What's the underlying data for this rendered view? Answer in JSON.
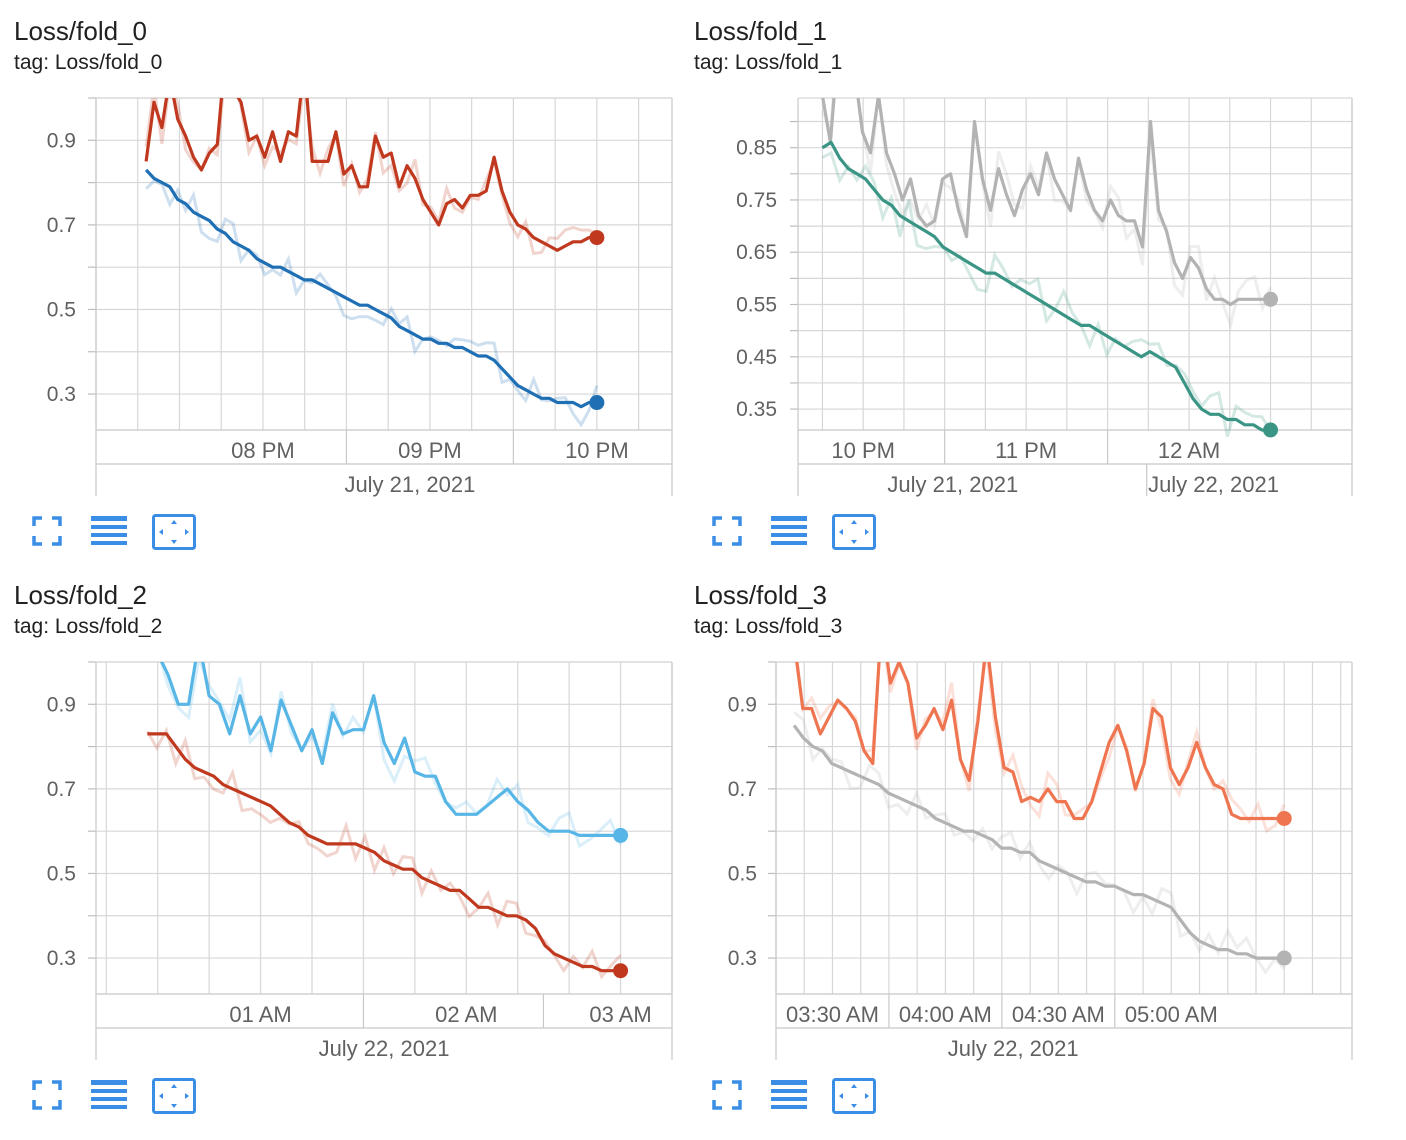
{
  "colors": {
    "blue": "#1f6fb4",
    "red": "#c0391f",
    "teal": "#3a9585",
    "gray": "#b3b3b3",
    "lightblue": "#58b6e6",
    "orange": "#ee7550",
    "icon": "#3a8ee6"
  },
  "icons": [
    "fullscreen-icon",
    "toggle-log-icon",
    "fit-domain-icon"
  ],
  "chart_data": [
    {
      "type": "line",
      "title": "Loss/fold_0",
      "tag": "tag: Loss/fold_0",
      "y_ticks": [
        "0.9",
        "0.7",
        "0.5",
        "0.3"
      ],
      "y_tick_values": [
        0.9,
        0.7,
        0.5,
        0.3
      ],
      "ylim": [
        0.215,
        1.0
      ],
      "x_ticks": [
        "08 PM",
        "09 PM",
        "10 PM"
      ],
      "x_tick_values": [
        20.0,
        21.0,
        22.0
      ],
      "xlim": [
        19.0,
        22.45
      ],
      "date_labels": [
        "July 21, 2021"
      ],
      "date_values": [
        20.88
      ],
      "date_sep": [],
      "x_start": 19.3,
      "x_end": 22.0,
      "grid": true,
      "series": [
        {
          "color_key": "red",
          "values": [
            0.85,
            0.99,
            0.93,
            1.05,
            0.95,
            0.91,
            0.86,
            0.83,
            0.87,
            0.89,
            1.1,
            1.02,
            0.99,
            0.9,
            0.91,
            0.86,
            0.92,
            0.85,
            0.92,
            0.91,
            1.08,
            0.85,
            0.85,
            0.85,
            0.92,
            0.82,
            0.84,
            0.79,
            0.79,
            0.91,
            0.86,
            0.87,
            0.79,
            0.84,
            0.81,
            0.76,
            0.73,
            0.7,
            0.75,
            0.76,
            0.74,
            0.77,
            0.77,
            0.78,
            0.86,
            0.78,
            0.73,
            0.7,
            0.69,
            0.67,
            0.66,
            0.65,
            0.64,
            0.65,
            0.66,
            0.66,
            0.67,
            0.67
          ]
        },
        {
          "color_key": "blue",
          "values": [
            0.83,
            0.81,
            0.8,
            0.79,
            0.76,
            0.75,
            0.73,
            0.72,
            0.71,
            0.69,
            0.68,
            0.66,
            0.65,
            0.64,
            0.62,
            0.61,
            0.6,
            0.6,
            0.59,
            0.58,
            0.57,
            0.57,
            0.56,
            0.55,
            0.54,
            0.53,
            0.52,
            0.51,
            0.51,
            0.5,
            0.49,
            0.48,
            0.46,
            0.45,
            0.44,
            0.43,
            0.43,
            0.42,
            0.42,
            0.41,
            0.41,
            0.4,
            0.39,
            0.39,
            0.38,
            0.36,
            0.34,
            0.32,
            0.31,
            0.3,
            0.29,
            0.29,
            0.28,
            0.28,
            0.28,
            0.27,
            0.28,
            0.28
          ]
        }
      ]
    },
    {
      "type": "line",
      "title": "Loss/fold_1",
      "tag": "tag: Loss/fold_1",
      "y_ticks": [
        "0.85",
        "0.75",
        "0.65",
        "0.55",
        "0.45",
        "0.35"
      ],
      "y_tick_values": [
        0.85,
        0.75,
        0.65,
        0.55,
        0.45,
        0.35
      ],
      "ylim": [
        0.31,
        0.945
      ],
      "x_ticks": [
        "10 PM",
        "11 PM",
        "12 AM"
      ],
      "x_tick_values": [
        22.0,
        23.0,
        24.0
      ],
      "xlim": [
        21.6,
        25.0
      ],
      "date_labels": [
        "July 21, 2021",
        "July 22, 2021"
      ],
      "date_values": [
        22.55,
        24.15
      ],
      "date_sep": [
        23.74
      ],
      "x_start": 21.75,
      "x_end": 24.5,
      "grid": true,
      "series": [
        {
          "color_key": "gray",
          "values": [
            0.95,
            0.86,
            1.05,
            0.96,
            1.0,
            0.88,
            0.84,
            0.95,
            0.84,
            0.8,
            0.75,
            0.79,
            0.72,
            0.7,
            0.71,
            0.79,
            0.8,
            0.73,
            0.68,
            0.9,
            0.79,
            0.73,
            0.81,
            0.76,
            0.72,
            0.77,
            0.8,
            0.76,
            0.84,
            0.79,
            0.76,
            0.73,
            0.83,
            0.77,
            0.73,
            0.71,
            0.75,
            0.72,
            0.71,
            0.71,
            0.66,
            0.9,
            0.73,
            0.69,
            0.63,
            0.6,
            0.64,
            0.62,
            0.58,
            0.56,
            0.56,
            0.55,
            0.56,
            0.56,
            0.56,
            0.56,
            0.56
          ]
        },
        {
          "color_key": "teal",
          "values": [
            0.85,
            0.86,
            0.83,
            0.81,
            0.8,
            0.79,
            0.77,
            0.75,
            0.74,
            0.72,
            0.71,
            0.7,
            0.69,
            0.68,
            0.66,
            0.65,
            0.64,
            0.63,
            0.62,
            0.61,
            0.61,
            0.6,
            0.59,
            0.58,
            0.57,
            0.56,
            0.55,
            0.54,
            0.53,
            0.52,
            0.51,
            0.51,
            0.5,
            0.49,
            0.48,
            0.47,
            0.46,
            0.45,
            0.46,
            0.45,
            0.44,
            0.43,
            0.4,
            0.37,
            0.35,
            0.34,
            0.34,
            0.33,
            0.33,
            0.32,
            0.32,
            0.31,
            0.31
          ]
        }
      ]
    },
    {
      "type": "line",
      "title": "Loss/fold_2",
      "tag": "tag: Loss/fold_2",
      "y_ticks": [
        "0.9",
        "0.7",
        "0.5",
        "0.3"
      ],
      "y_tick_values": [
        0.9,
        0.7,
        0.5,
        0.3
      ],
      "ylim": [
        0.215,
        1.0
      ],
      "x_ticks": [
        "01 AM",
        "02 AM",
        "03 AM"
      ],
      "x_tick_values": [
        25.0,
        26.0,
        26.75
      ],
      "xlim": [
        24.2,
        27.0
      ],
      "date_labels": [
        "July 22, 2021"
      ],
      "date_values": [
        25.6
      ],
      "date_sep": [],
      "x_start": 24.45,
      "x_end": 26.75,
      "grid": true,
      "series": [
        {
          "color_key": "lightblue",
          "values": [
            1.05,
            1.02,
            0.97,
            0.9,
            0.9,
            1.05,
            0.92,
            0.9,
            0.83,
            0.92,
            0.83,
            0.87,
            0.79,
            0.91,
            0.85,
            0.79,
            0.84,
            0.76,
            0.88,
            0.83,
            0.84,
            0.84,
            0.92,
            0.81,
            0.76,
            0.82,
            0.74,
            0.73,
            0.73,
            0.67,
            0.64,
            0.64,
            0.64,
            0.66,
            0.68,
            0.7,
            0.67,
            0.65,
            0.62,
            0.6,
            0.6,
            0.6,
            0.59,
            0.59,
            0.59,
            0.59,
            0.59
          ]
        },
        {
          "color_key": "red",
          "values": [
            0.83,
            0.83,
            0.83,
            0.8,
            0.77,
            0.75,
            0.74,
            0.73,
            0.71,
            0.7,
            0.69,
            0.68,
            0.67,
            0.66,
            0.64,
            0.62,
            0.61,
            0.59,
            0.58,
            0.57,
            0.57,
            0.57,
            0.57,
            0.56,
            0.55,
            0.53,
            0.52,
            0.51,
            0.51,
            0.49,
            0.48,
            0.47,
            0.46,
            0.46,
            0.44,
            0.42,
            0.42,
            0.41,
            0.4,
            0.4,
            0.39,
            0.37,
            0.33,
            0.31,
            0.3,
            0.29,
            0.28,
            0.28,
            0.27,
            0.27,
            0.27
          ]
        }
      ]
    },
    {
      "type": "line",
      "title": "Loss/fold_3",
      "tag": "tag: Loss/fold_3",
      "y_ticks": [
        "0.9",
        "0.7",
        "0.5",
        "0.3"
      ],
      "y_tick_values": [
        0.9,
        0.7,
        0.5,
        0.3
      ],
      "ylim": [
        0.215,
        1.0
      ],
      "x_ticks": [
        "03:30 AM",
        "04:00 AM",
        "04:30 AM",
        "05:00 AM"
      ],
      "x_tick_values": [
        27.5,
        28.0,
        28.5,
        29.0
      ],
      "xlim": [
        27.25,
        29.8
      ],
      "date_labels": [
        "July 22, 2021"
      ],
      "date_values": [
        28.3
      ],
      "date_sep": [],
      "x_start": 27.33,
      "x_end": 29.5,
      "grid": true,
      "series": [
        {
          "color_key": "orange",
          "values": [
            1.05,
            0.89,
            0.89,
            0.83,
            0.87,
            0.91,
            0.89,
            0.86,
            0.79,
            0.76,
            1.1,
            0.95,
            1.0,
            0.95,
            0.82,
            0.85,
            0.89,
            0.84,
            0.91,
            0.77,
            0.72,
            0.86,
            1.05,
            0.87,
            0.75,
            0.74,
            0.67,
            0.68,
            0.67,
            0.7,
            0.67,
            0.67,
            0.63,
            0.63,
            0.67,
            0.74,
            0.81,
            0.85,
            0.79,
            0.7,
            0.76,
            0.89,
            0.87,
            0.75,
            0.71,
            0.75,
            0.81,
            0.75,
            0.71,
            0.7,
            0.64,
            0.63,
            0.63,
            0.63,
            0.63,
            0.63,
            0.63
          ]
        },
        {
          "color_key": "gray",
          "values": [
            0.85,
            0.82,
            0.8,
            0.79,
            0.76,
            0.75,
            0.74,
            0.73,
            0.72,
            0.71,
            0.69,
            0.68,
            0.67,
            0.66,
            0.65,
            0.63,
            0.62,
            0.61,
            0.6,
            0.6,
            0.59,
            0.58,
            0.56,
            0.56,
            0.55,
            0.55,
            0.53,
            0.52,
            0.51,
            0.5,
            0.49,
            0.48,
            0.48,
            0.47,
            0.47,
            0.46,
            0.45,
            0.45,
            0.44,
            0.43,
            0.42,
            0.39,
            0.36,
            0.34,
            0.33,
            0.32,
            0.32,
            0.31,
            0.31,
            0.3,
            0.3,
            0.3,
            0.3
          ]
        }
      ]
    }
  ]
}
